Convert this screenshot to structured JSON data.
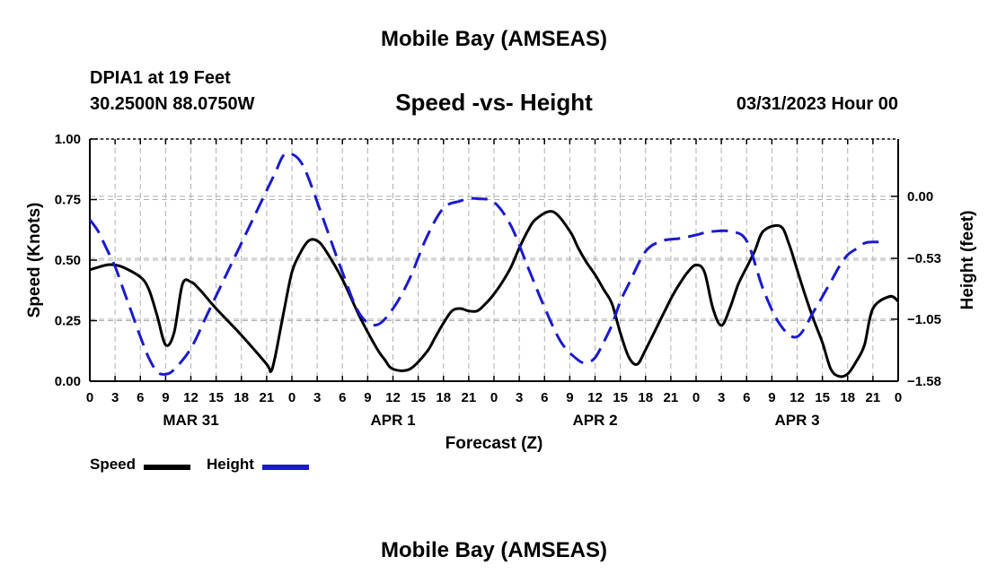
{
  "header": {
    "title": "Mobile Bay (AMSEAS)",
    "station": "DPIA1 at 19 Feet",
    "coords": "30.2500N  88.0750W",
    "chart_title": "Speed -vs- Height",
    "timestamp": "03/31/2023 Hour 00"
  },
  "footer": {
    "repeat_title": "Mobile Bay (AMSEAS)"
  },
  "legend": {
    "speed_label": "Speed",
    "height_label": "Height"
  },
  "colors": {
    "speed": "#000000",
    "height": "#1a1acc",
    "grid": "#b0b0b0"
  },
  "chart_data": {
    "type": "line",
    "title": "Speed -vs- Height",
    "xlabel": "Forecast (Z)",
    "ylabel": "Speed (Knots)",
    "y2label": "Height (feet)",
    "xlim": [
      0,
      96
    ],
    "ylim": [
      0,
      1
    ],
    "y2lim": [
      -1.58,
      0.49
    ],
    "y_ticks": [
      "0.00",
      "0.25",
      "0.50",
      "0.75",
      "1.00"
    ],
    "y2_ticks": [
      {
        "value": -1.58,
        "label": "−1.58"
      },
      {
        "value": -1.05,
        "label": "−1.05"
      },
      {
        "value": -0.53,
        "label": "−0.53"
      },
      {
        "value": 0.0,
        "label": "0.00"
      }
    ],
    "x_tick_labels": [
      "0",
      "3",
      "6",
      "9",
      "12",
      "15",
      "18",
      "21",
      "0",
      "3",
      "6",
      "9",
      "12",
      "15",
      "18",
      "21",
      "0",
      "3",
      "6",
      "9",
      "12",
      "15",
      "18",
      "21",
      "0",
      "3",
      "6",
      "9",
      "12",
      "15",
      "18",
      "21",
      "0"
    ],
    "date_labels": [
      {
        "label": "MAR 31",
        "hour": 12
      },
      {
        "label": "APR 1",
        "hour": 36
      },
      {
        "label": "APR 2",
        "hour": 60
      },
      {
        "label": "APR 3",
        "hour": 84
      }
    ],
    "series": [
      {
        "name": "Speed",
        "axis": "left",
        "style": "solid",
        "x": [
          0,
          2,
          3,
          4,
          6,
          7,
          8,
          9,
          10,
          11,
          12,
          13,
          15,
          18,
          21,
          21.5,
          22,
          23,
          24,
          25,
          26,
          27,
          28,
          30,
          32,
          34,
          35,
          36,
          38,
          40,
          41,
          42,
          43,
          44,
          45,
          46,
          47,
          48,
          49,
          50,
          51,
          52,
          53,
          55,
          57,
          58,
          59,
          60,
          61,
          62,
          63,
          64,
          65,
          66,
          68,
          69,
          70,
          71,
          72,
          73,
          74,
          75,
          76,
          77,
          78,
          79,
          80,
          82,
          83,
          84,
          85,
          86,
          87,
          88,
          89,
          90,
          91,
          92,
          93,
          95,
          96
        ],
        "values": [
          0.46,
          0.48,
          0.48,
          0.47,
          0.43,
          0.38,
          0.27,
          0.15,
          0.2,
          0.4,
          0.41,
          0.38,
          0.3,
          0.19,
          0.07,
          0.04,
          0.1,
          0.28,
          0.45,
          0.53,
          0.58,
          0.58,
          0.54,
          0.42,
          0.27,
          0.14,
          0.09,
          0.05,
          0.05,
          0.12,
          0.18,
          0.24,
          0.29,
          0.3,
          0.29,
          0.29,
          0.32,
          0.36,
          0.41,
          0.47,
          0.55,
          0.62,
          0.67,
          0.7,
          0.62,
          0.55,
          0.49,
          0.44,
          0.38,
          0.32,
          0.2,
          0.1,
          0.07,
          0.13,
          0.27,
          0.34,
          0.4,
          0.45,
          0.48,
          0.45,
          0.3,
          0.23,
          0.3,
          0.4,
          0.47,
          0.54,
          0.62,
          0.64,
          0.57,
          0.46,
          0.35,
          0.25,
          0.16,
          0.05,
          0.02,
          0.03,
          0.08,
          0.15,
          0.3,
          0.35,
          0.33
        ]
      },
      {
        "name": "Height",
        "axis": "right",
        "style": "dashed",
        "x": [
          0,
          1,
          2,
          3,
          4,
          5,
          6,
          7,
          8,
          9,
          10,
          12,
          14,
          16,
          18,
          20,
          22,
          23,
          24,
          25,
          26,
          28,
          30,
          32,
          34,
          36,
          38,
          40,
          42,
          44,
          45,
          46,
          48,
          50,
          52,
          54,
          56,
          58,
          59,
          60,
          61,
          62,
          63,
          64,
          66,
          68,
          70,
          72,
          73,
          74,
          76,
          78,
          80,
          82,
          84,
          86,
          88,
          89,
          90,
          91,
          92,
          93,
          94
        ],
        "values": [
          -0.2,
          -0.3,
          -0.45,
          -0.6,
          -0.8,
          -1.0,
          -1.2,
          -1.38,
          -1.5,
          -1.52,
          -1.48,
          -1.3,
          -1.0,
          -0.7,
          -0.4,
          -0.1,
          0.2,
          0.35,
          0.36,
          0.3,
          0.15,
          -0.25,
          -0.65,
          -1.0,
          -1.1,
          -0.96,
          -0.7,
          -0.35,
          -0.1,
          -0.04,
          -0.02,
          -0.02,
          -0.05,
          -0.25,
          -0.6,
          -0.95,
          -1.25,
          -1.4,
          -1.42,
          -1.38,
          -1.25,
          -1.1,
          -0.9,
          -0.75,
          -0.47,
          -0.38,
          -0.36,
          -0.33,
          -0.31,
          -0.3,
          -0.3,
          -0.38,
          -0.8,
          -1.1,
          -1.2,
          -0.98,
          -0.73,
          -0.6,
          -0.5,
          -0.45,
          -0.4,
          -0.39,
          -0.39
        ]
      }
    ]
  }
}
